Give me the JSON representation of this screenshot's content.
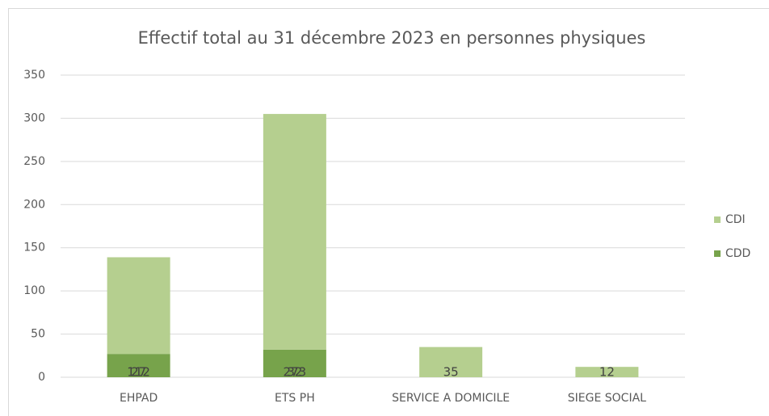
{
  "chart_data": {
    "type": "bar",
    "stacked": true,
    "title": "Effectif total au 31 décembre 2023 en personnes physiques",
    "categories": [
      "EHPAD",
      "ETS PH",
      "SERVICE A DOMICILE",
      "SIEGE SOCIAL"
    ],
    "series": [
      {
        "name": "CDI",
        "color": "#b5cf8f",
        "values": [
          112,
          273,
          35,
          12
        ]
      },
      {
        "name": "CDD",
        "color": "#77a34b",
        "values": [
          27,
          32,
          null,
          null
        ]
      }
    ],
    "ylim": [
      0,
      350
    ],
    "yticks": [
      0,
      50,
      100,
      150,
      200,
      250,
      300,
      350
    ],
    "grid": true,
    "legend": "right"
  }
}
